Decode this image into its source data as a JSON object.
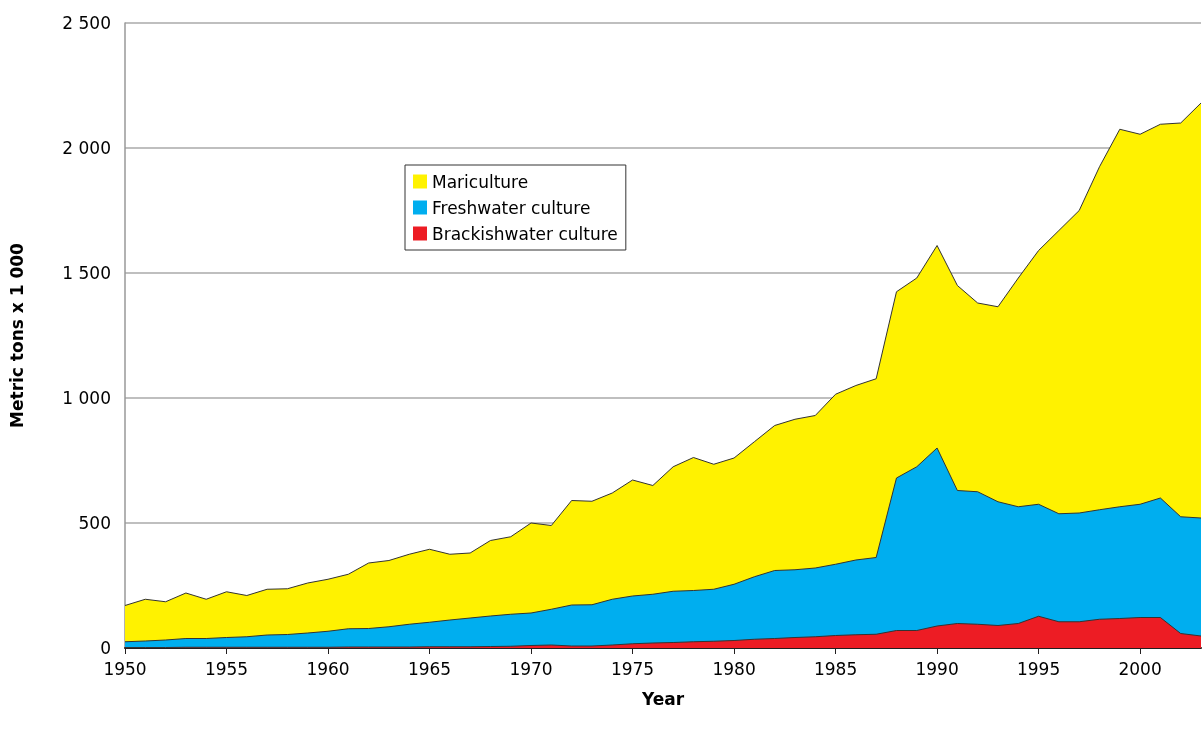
{
  "chart_data": {
    "type": "area",
    "xlabel": "Year",
    "ylabel": "Metric tons x 1 000",
    "x": [
      1950,
      1951,
      1952,
      1953,
      1954,
      1955,
      1956,
      1957,
      1958,
      1959,
      1960,
      1961,
      1962,
      1963,
      1964,
      1965,
      1966,
      1967,
      1968,
      1969,
      1970,
      1971,
      1972,
      1973,
      1974,
      1975,
      1976,
      1977,
      1978,
      1979,
      1980,
      1981,
      1982,
      1983,
      1984,
      1985,
      1986,
      1987,
      1988,
      1989,
      1990,
      1991,
      1992,
      1993,
      1994,
      1995,
      1996,
      1997,
      1998,
      1999,
      2000,
      2001,
      2002,
      2003
    ],
    "stacked": true,
    "series": [
      {
        "name": "Brackishwater culture",
        "color": "#ed1c24",
        "values": [
          2,
          2,
          2,
          3,
          3,
          3,
          3,
          3,
          3,
          3,
          3,
          4,
          4,
          4,
          4,
          5,
          5,
          5,
          6,
          7,
          10,
          12,
          8,
          8,
          12,
          17,
          20,
          22,
          25,
          27,
          30,
          35,
          38,
          42,
          45,
          50,
          53,
          55,
          70,
          70,
          88,
          98,
          95,
          90,
          98,
          127,
          105,
          105,
          115,
          118,
          122,
          122,
          58,
          48
        ]
      },
      {
        "name": "Freshwater culture",
        "color": "#00aeef",
        "values": [
          23,
          26,
          30,
          35,
          35,
          39,
          42,
          49,
          51,
          57,
          64,
          73,
          74,
          81,
          91,
          98,
          107,
          115,
          122,
          128,
          130,
          143,
          164,
          165,
          183,
          191,
          195,
          205,
          205,
          208,
          225,
          250,
          272,
          271,
          275,
          285,
          299,
          307,
          610,
          655,
          712,
          532,
          530,
          495,
          467,
          448,
          432,
          435,
          438,
          447,
          453,
          478,
          467,
          472
        ]
      },
      {
        "name": "Mariculture",
        "color": "#fff200",
        "values": [
          145,
          167,
          153,
          182,
          157,
          183,
          165,
          183,
          183,
          200,
          208,
          218,
          262,
          265,
          280,
          292,
          263,
          260,
          302,
          310,
          360,
          335,
          418,
          414,
          425,
          464,
          435,
          498,
          532,
          500,
          505,
          540,
          580,
          602,
          610,
          680,
          698,
          715,
          745,
          755,
          810,
          820,
          755,
          780,
          915,
          1015,
          1133,
          1210,
          1372,
          1510,
          1480,
          1495,
          1575,
          1660
        ]
      }
    ],
    "xlim": [
      1950,
      2003
    ],
    "xticks": [
      1950,
      1955,
      1960,
      1965,
      1970,
      1975,
      1980,
      1985,
      1990,
      1995,
      2000
    ],
    "ylim": [
      0,
      2500
    ],
    "yticks": [
      0,
      500,
      {
        "value": 1000,
        "label": "1 000"
      },
      {
        "value": 1500,
        "label": "1 500"
      },
      {
        "value": 2000,
        "label": "2 000"
      },
      {
        "value": 2500,
        "label": "2 500"
      }
    ],
    "grid": "y",
    "legend": "top left",
    "line_style": "solid"
  }
}
